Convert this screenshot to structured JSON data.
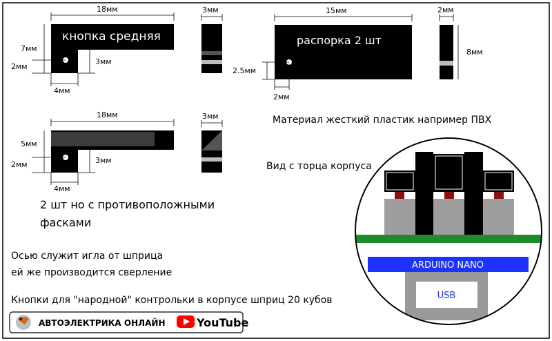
{
  "colors": {
    "black": "#000000",
    "dark_gray": "#3c3c3c",
    "mid_gray": "#555555",
    "light_gray": "#bdbdbd",
    "board_green": "#1e8c2a",
    "nano_blue": "#1c33ff",
    "usb_gray": "#999999",
    "red": "#8b1010",
    "youtube_red": "#ff0000"
  },
  "button_middle": {
    "label": "кнопка средняя",
    "width_label": "18мм",
    "height_label": "7мм",
    "hole_offset_label": "2мм",
    "leg_height_label": "3мм",
    "leg_width_label": "4мм",
    "side_label": "3мм"
  },
  "spacer": {
    "label": "распорка 2 шт",
    "width_label": "15мм",
    "height_label": "8мм",
    "hole_offset_label": "2.5мм",
    "hole_x_label": "2мм",
    "side_label": "2мм"
  },
  "button_chamfer": {
    "width_label": "18мм",
    "height_label": "5мм",
    "hole_offset_label": "2мм",
    "leg_height_label": "3мм",
    "leg_width_label": "4мм",
    "side_label": "3мм"
  },
  "material_text": "Материал жесткий пластик например ПВХ",
  "end_view_text": "Вид с торца корпуса",
  "chamfer_note_line1": "2 шт но с противоположными",
  "chamfer_note_line2": "фасками",
  "axis_note_line1": "Осью служит игла от шприца",
  "axis_note_line2": "ей же производится сверление",
  "caption": "Кнопки для \"народной\" контрольки в корпусе шприц 20 кубов",
  "section": {
    "board_label": "ARDUINO NANO",
    "usb_label": "USB"
  },
  "footer": {
    "brand": "АВТОЭЛЕКТРИКА ОНЛАЙН",
    "youtube": "YouTube",
    "logo_icon": "globe-logo-icon",
    "youtube_icon": "youtube-play-icon"
  }
}
